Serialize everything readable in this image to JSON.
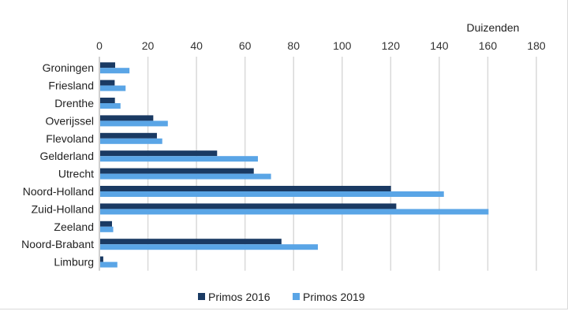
{
  "chart_data": {
    "type": "bar",
    "orientation": "horizontal",
    "title": "",
    "unit_label": "Duizenden",
    "categories": [
      "Groningen",
      "Friesland",
      "Drenthe",
      "Overijssel",
      "Flevoland",
      "Gelderland",
      "Utrecht",
      "Noord-Holland",
      "Zuid-Holland",
      "Zeeland",
      "Noord-Brabant",
      "Limburg"
    ],
    "series": [
      {
        "name": "Primos 2016",
        "color": "#1a3a63",
        "values": [
          6.5,
          6.3,
          6.4,
          22.2,
          23.7,
          48.5,
          63.6,
          120.1,
          122.3,
          5.2,
          75.0,
          1.6
        ]
      },
      {
        "name": "Primos 2019",
        "color": "#5aa5e6",
        "values": [
          12.4,
          10.8,
          8.7,
          28.2,
          25.9,
          65.3,
          70.7,
          141.9,
          160.3,
          5.7,
          90.0,
          7.4
        ]
      }
    ],
    "xlim": [
      0,
      180
    ],
    "xticks": [
      "0",
      "20",
      "40",
      "60",
      "80",
      "100",
      "120",
      "140",
      "160",
      "180"
    ],
    "grid": true,
    "legend_position": "bottom"
  }
}
